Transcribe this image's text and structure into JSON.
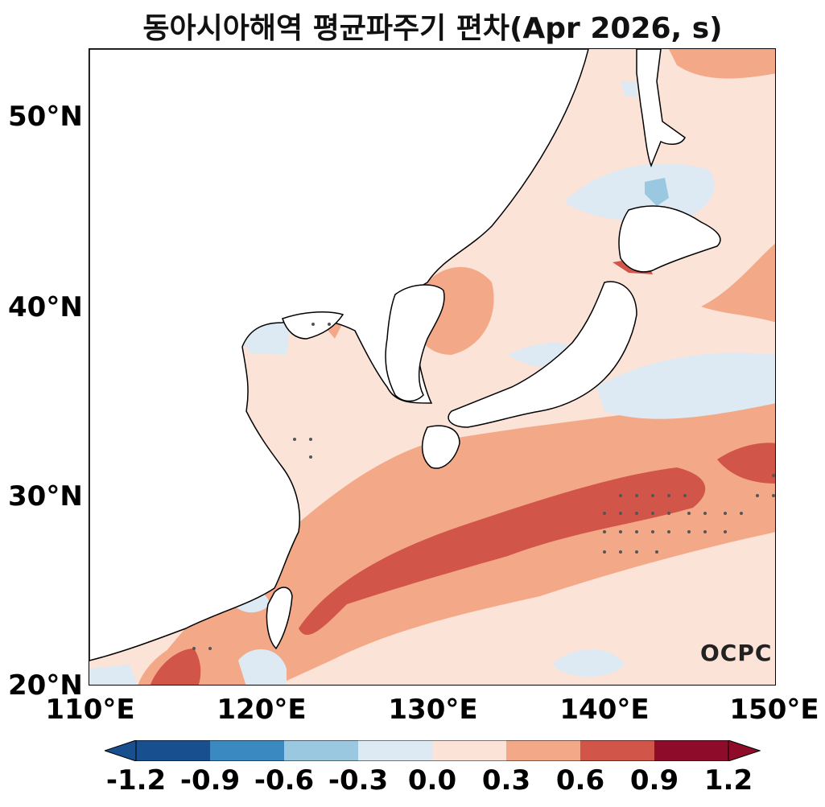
{
  "title": "동아시아해역 평균파주기 편차(Apr 2026, s)",
  "logo": "OCPC",
  "axes": {
    "lat_labels": [
      "50°N",
      "40°N",
      "30°N",
      "20°N"
    ],
    "lon_labels": [
      "110°E",
      "120°E",
      "130°E",
      "140°E",
      "150°E"
    ],
    "lon_range": [
      110,
      150
    ],
    "lat_range": [
      20,
      53.5
    ]
  },
  "colorbar": {
    "ticks": [
      "-1.2",
      "-0.9",
      "-0.6",
      "-0.3",
      "0.0",
      "0.3",
      "0.6",
      "0.9",
      "1.2"
    ],
    "colors": [
      "#18508f",
      "#3b89c1",
      "#9ac8e0",
      "#ddeaf3",
      "#fbe3d8",
      "#f3a988",
      "#d2554a",
      "#8e0c2a"
    ],
    "extend": "both"
  },
  "chart_data": {
    "type": "heatmap",
    "title": "동아시아해역 평균파주기 편차(Apr 2026, s)",
    "xlabel": "",
    "ylabel": "",
    "xlim": [
      110,
      150
    ],
    "ylim": [
      20,
      53.5
    ],
    "levels": [
      -1.2,
      -0.9,
      -0.6,
      -0.3,
      0.0,
      0.3,
      0.6,
      0.9,
      1.2
    ],
    "grid": false
  }
}
